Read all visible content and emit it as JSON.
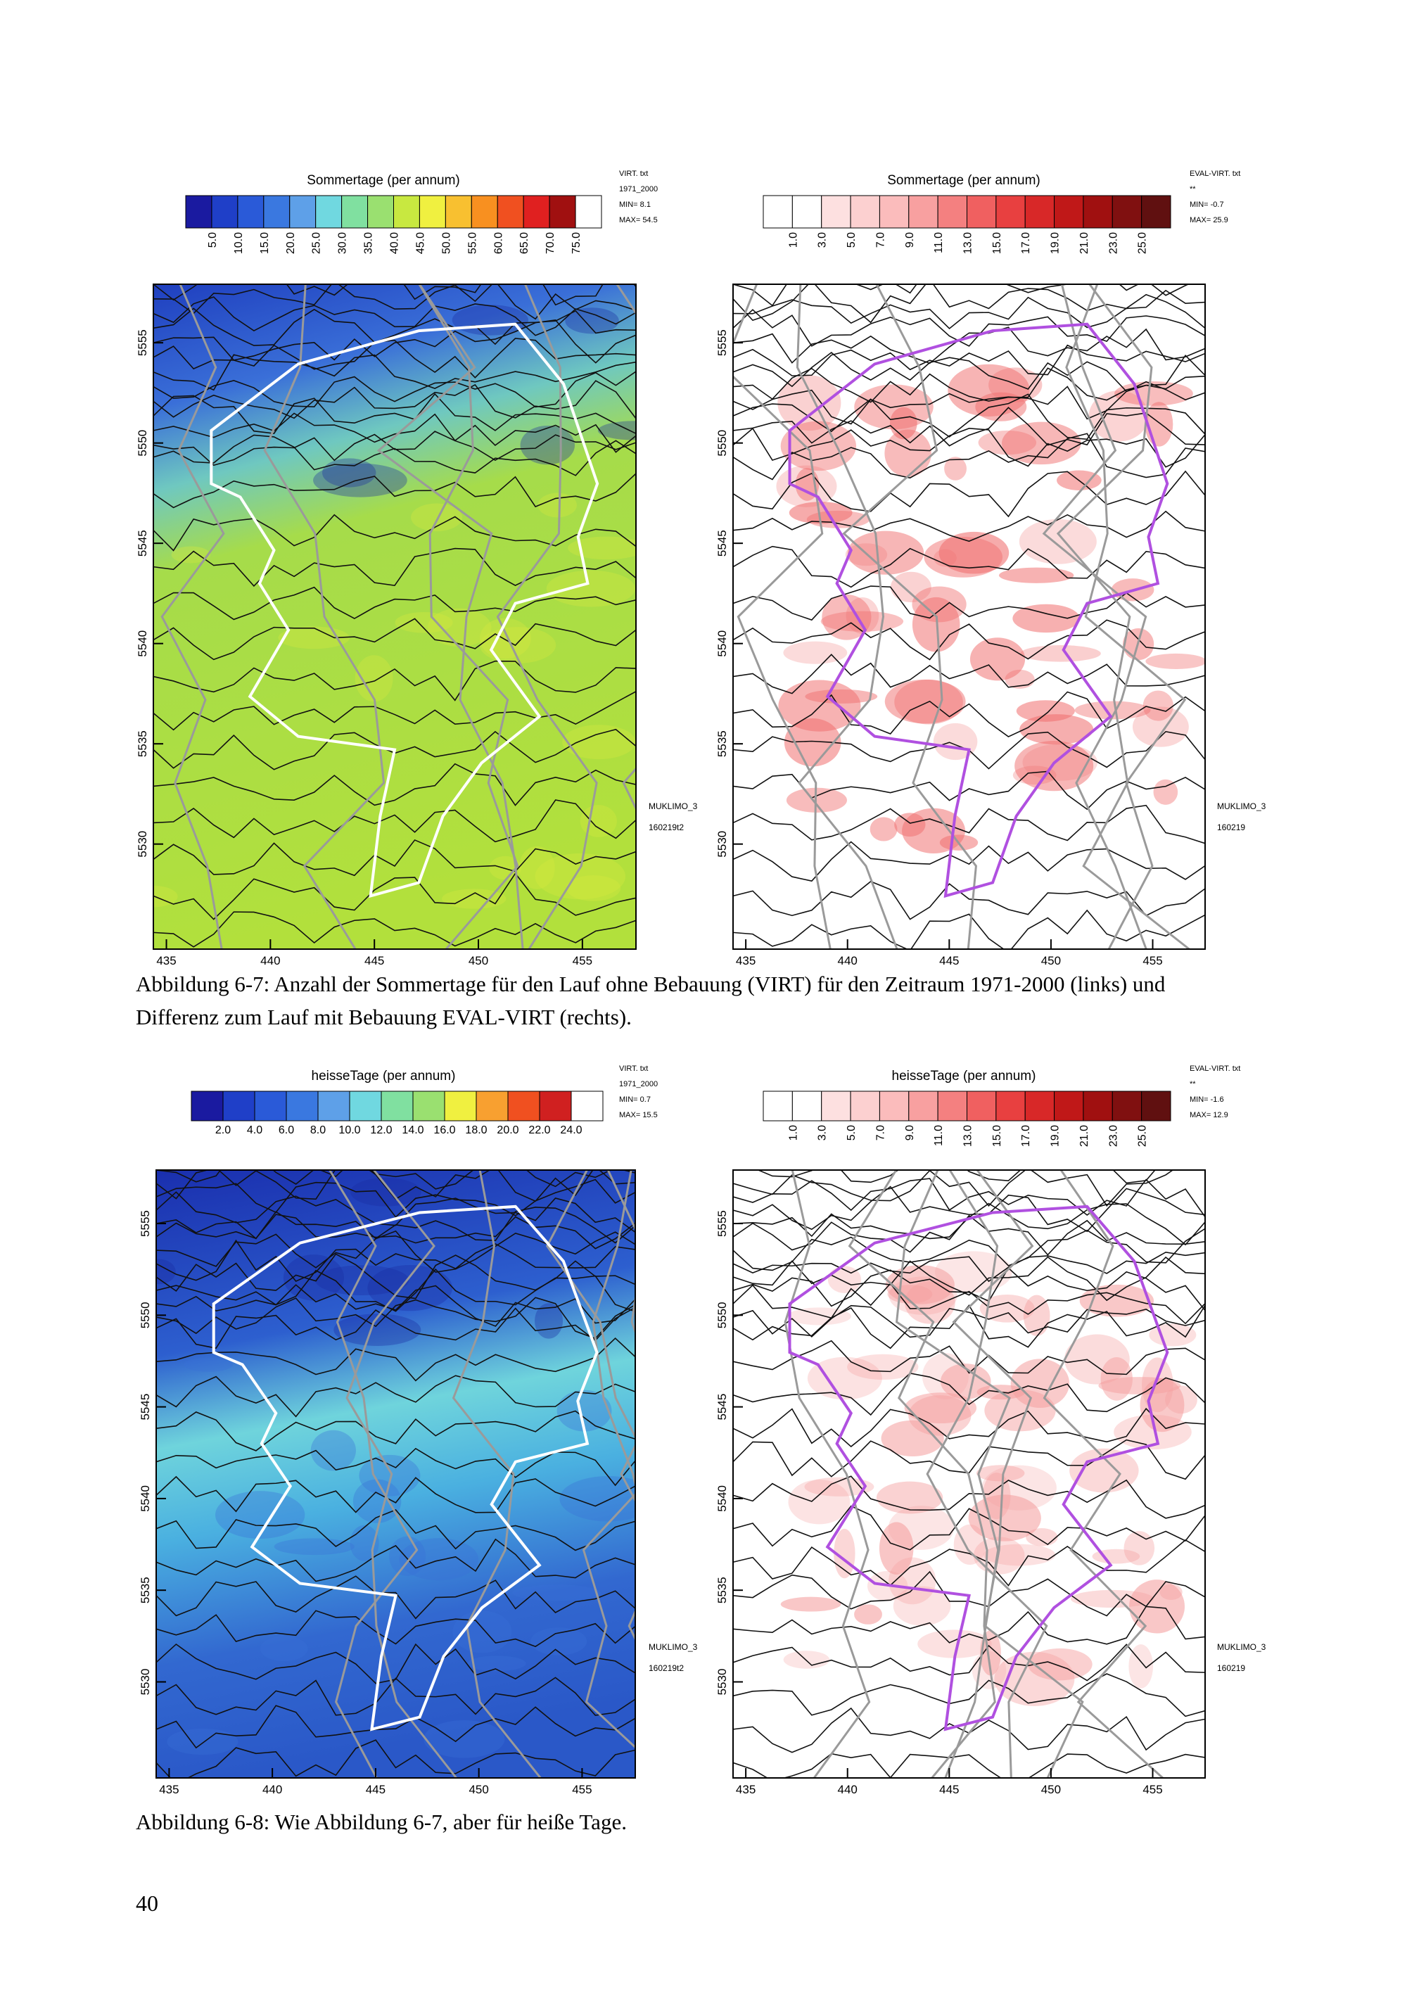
{
  "panels": [
    {
      "title": "Sommertage (per annum)",
      "scale_labels": [
        "5.0",
        "10.0",
        "15.0",
        "20.0",
        "25.0",
        "30.0",
        "35.0",
        "40.0",
        "45.0",
        "50.0",
        "55.0",
        "60.0",
        "65.0",
        "70.0",
        "75.0"
      ],
      "meta": [
        "VIRT. txt",
        "1971_2000",
        "MIN=  8.1",
        "MAX=  54.5"
      ],
      "side": [
        "MUKLIMO_3",
        "160219t2"
      ],
      "x_ticks": [
        "435",
        "440",
        "445",
        "450",
        "455"
      ],
      "y_ticks": [
        "5555",
        "5550",
        "5545",
        "5540",
        "5535",
        "5530"
      ]
    },
    {
      "title": "Sommertage (per annum)",
      "scale_labels": [
        "1.0",
        "3.0",
        "5.0",
        "7.0",
        "9.0",
        "11.0",
        "13.0",
        "15.0",
        "17.0",
        "19.0",
        "21.0",
        "23.0",
        "25.0"
      ],
      "meta": [
        "EVAL-VIRT. txt",
        "**",
        "MIN=  -0.7",
        "MAX=  25.9"
      ],
      "side": [
        "MUKLIMO_3",
        "160219"
      ],
      "x_ticks": [
        "435",
        "440",
        "445",
        "450",
        "455"
      ],
      "y_ticks": [
        "5555",
        "5550",
        "5545",
        "5540",
        "5535",
        "5530"
      ]
    },
    {
      "title": "heisseTage (per annum)",
      "scale_labels": [
        "2.0",
        "4.0",
        "6.0",
        "8.0",
        "10.0",
        "12.0",
        "14.0",
        "16.0",
        "18.0",
        "20.0",
        "22.0",
        "24.0"
      ],
      "meta": [
        "VIRT. txt",
        "1971_2000",
        "MIN=  0.7",
        "MAX=  15.5"
      ],
      "side": [
        "MUKLIMO_3",
        "160219t2"
      ],
      "x_ticks": [
        "435",
        "440",
        "445",
        "450",
        "455"
      ],
      "y_ticks": [
        "5555",
        "5550",
        "5545",
        "5540",
        "5535",
        "5530"
      ]
    },
    {
      "title": "heisseTage (per annum)",
      "scale_labels": [
        "1.0",
        "3.0",
        "5.0",
        "7.0",
        "9.0",
        "11.0",
        "13.0",
        "15.0",
        "17.0",
        "19.0",
        "21.0",
        "23.0",
        "25.0"
      ],
      "meta": [
        "EVAL-VIRT. txt",
        "**",
        "MIN=  -1.6",
        "MAX=  12.9"
      ],
      "side": [
        "MUKLIMO_3",
        "160219"
      ],
      "x_ticks": [
        "435",
        "440",
        "445",
        "450",
        "455"
      ],
      "y_ticks": [
        "5555",
        "5550",
        "5545",
        "5540",
        "5535",
        "5530"
      ]
    }
  ],
  "captions": [
    [
      "Abbildung 6-7: Anzahl der Sommertage für den Lauf ohne Bebauung (VIRT) für den Zeitraum 1971-2000 (links) und",
      "Differenz zum Lauf mit Bebauung EVAL-VIRT (rechts)."
    ],
    [
      "Abbildung 6-8: Wie Abbildung 6-7, aber für heiße Tage."
    ]
  ],
  "page_number": "40"
}
